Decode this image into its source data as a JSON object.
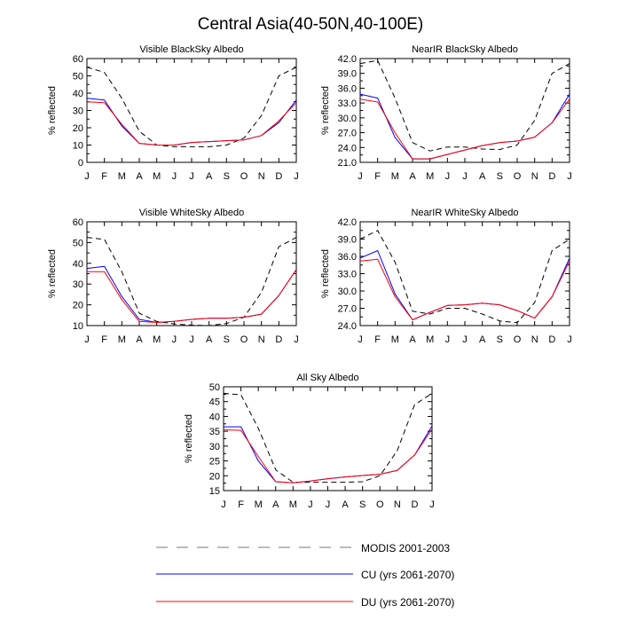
{
  "figure_title": "Central Asia(40-50N,40-100E)",
  "colors": {
    "modis": "#000000",
    "cu": "#0000ff",
    "du": "#ff0000"
  },
  "legend": [
    {
      "key": "modis",
      "label": "MODIS 2001-2003",
      "style": "dashed",
      "color": "#000000"
    },
    {
      "key": "cu",
      "label": "CU (yrs 2061-2070)",
      "style": "solid",
      "color": "#0000ff"
    },
    {
      "key": "du",
      "label": "DU (yrs 2061-2070)",
      "style": "solid",
      "color": "#ff0000"
    }
  ],
  "chart_data": [
    {
      "type": "line",
      "title": "Visible BlackSky Albedo",
      "ylabel": "% reflected",
      "categories": [
        "J",
        "F",
        "M",
        "A",
        "M",
        "J",
        "J",
        "A",
        "S",
        "O",
        "N",
        "D",
        "J"
      ],
      "ylim": [
        0,
        60
      ],
      "yticks": [
        0,
        10,
        20,
        30,
        40,
        50,
        60
      ],
      "ytick_labels": [
        "0",
        "10",
        "20",
        "30",
        "40",
        "50",
        "60"
      ],
      "series": [
        {
          "name": "MODIS 2001-2003",
          "key": "modis",
          "values": [
            55,
            52,
            37,
            18,
            10,
            9,
            9,
            9,
            10,
            14,
            27,
            50,
            55
          ]
        },
        {
          "name": "CU (yrs 2061-2070)",
          "key": "cu",
          "values": [
            37,
            36,
            21,
            11,
            10,
            10,
            11.5,
            12,
            12.5,
            13,
            15.5,
            23,
            36
          ]
        },
        {
          "name": "DU (yrs 2061-2070)",
          "key": "du",
          "values": [
            35,
            34.5,
            22,
            11,
            10,
            10,
            11.5,
            12,
            12.5,
            13,
            15.5,
            24,
            34.5
          ]
        }
      ]
    },
    {
      "type": "line",
      "title": "NearIR BlackSky Albedo",
      "ylabel": "% reflected",
      "categories": [
        "J",
        "F",
        "M",
        "A",
        "M",
        "J",
        "J",
        "A",
        "S",
        "O",
        "N",
        "D",
        "J"
      ],
      "ylim": [
        21,
        42
      ],
      "yticks": [
        21,
        24,
        27,
        30,
        33,
        36,
        39,
        42
      ],
      "ytick_labels": [
        "21.0",
        "24.0",
        "27.0",
        "30.0",
        "33.0",
        "36.0",
        "39.0",
        "42.0"
      ],
      "series": [
        {
          "name": "MODIS 2001-2003",
          "key": "modis",
          "values": [
            41,
            41.6,
            34,
            25,
            23.3,
            24.1,
            24.1,
            23.7,
            23.6,
            24.5,
            29.5,
            39,
            41
          ]
        },
        {
          "name": "CU (yrs 2061-2070)",
          "key": "cu",
          "values": [
            34.8,
            34,
            26,
            21.7,
            21.7,
            22.6,
            23.5,
            24.4,
            25,
            25.3,
            26.1,
            29,
            34.8
          ]
        },
        {
          "name": "DU (yrs 2061-2070)",
          "key": "du",
          "values": [
            33.8,
            33.2,
            27,
            21.7,
            21.7,
            22.6,
            23.5,
            24.4,
            25,
            25.3,
            26.1,
            29,
            33.8
          ]
        }
      ]
    },
    {
      "type": "line",
      "title": "Visible WhiteSky Albedo",
      "ylabel": "% reflected",
      "categories": [
        "J",
        "F",
        "M",
        "A",
        "M",
        "J",
        "J",
        "A",
        "S",
        "O",
        "N",
        "D",
        "J"
      ],
      "ylim": [
        10,
        60
      ],
      "yticks": [
        10,
        20,
        30,
        40,
        50,
        60
      ],
      "ytick_labels": [
        "10",
        "20",
        "30",
        "40",
        "50",
        "60"
      ],
      "series": [
        {
          "name": "MODIS 2001-2003",
          "key": "modis",
          "values": [
            52.5,
            51.5,
            36,
            16,
            12,
            10.8,
            10.2,
            10,
            11,
            14,
            26,
            48,
            52.5
          ]
        },
        {
          "name": "CU (yrs 2061-2070)",
          "key": "cu",
          "values": [
            37.5,
            38.5,
            24,
            13,
            11.5,
            12,
            13,
            13.5,
            13.5,
            14,
            15.5,
            24.5,
            37
          ]
        },
        {
          "name": "DU (yrs 2061-2070)",
          "key": "du",
          "values": [
            36,
            36,
            22.5,
            12,
            11.5,
            12,
            13,
            13.5,
            13.5,
            14,
            15.5,
            24.5,
            37
          ]
        }
      ]
    },
    {
      "type": "line",
      "title": "NearIR WhiteSky Albedo",
      "ylabel": "% reflected",
      "categories": [
        "J",
        "F",
        "M",
        "A",
        "M",
        "J",
        "J",
        "A",
        "S",
        "O",
        "N",
        "D",
        "J"
      ],
      "ylim": [
        24,
        42
      ],
      "yticks": [
        24,
        27,
        30,
        33,
        36,
        39,
        42
      ],
      "ytick_labels": [
        "24.0",
        "27.0",
        "30.0",
        "33.0",
        "36.0",
        "39.0",
        "42.0"
      ],
      "series": [
        {
          "name": "MODIS 2001-2003",
          "key": "modis",
          "values": [
            39,
            40.5,
            35,
            26.5,
            26,
            27,
            27,
            26,
            24.8,
            24.5,
            28,
            37,
            39
          ]
        },
        {
          "name": "CU (yrs 2061-2070)",
          "key": "cu",
          "values": [
            35.7,
            37,
            29.5,
            25,
            26.3,
            27.5,
            27.6,
            27.9,
            27.6,
            26.6,
            25.3,
            29,
            35.7
          ]
        },
        {
          "name": "DU (yrs 2061-2070)",
          "key": "du",
          "values": [
            35.2,
            35.5,
            29,
            25,
            26.3,
            27.5,
            27.6,
            27.9,
            27.6,
            26.6,
            25.3,
            29,
            35.2
          ]
        }
      ]
    },
    {
      "type": "line",
      "title": "All Sky Albedo",
      "ylabel": "% reflected",
      "categories": [
        "J",
        "F",
        "M",
        "A",
        "M",
        "J",
        "J",
        "A",
        "S",
        "O",
        "N",
        "D",
        "J"
      ],
      "ylim": [
        15,
        50
      ],
      "yticks": [
        15,
        20,
        25,
        30,
        35,
        40,
        45,
        50
      ],
      "ytick_labels": [
        "15",
        "20",
        "25",
        "30",
        "35",
        "40",
        "45",
        "50"
      ],
      "series": [
        {
          "name": "MODIS 2001-2003",
          "key": "modis",
          "values": [
            47.8,
            47.3,
            36,
            22,
            17.8,
            17.8,
            17.8,
            17.8,
            18,
            20,
            28.5,
            44,
            47.8
          ]
        },
        {
          "name": "CU (yrs 2061-2070)",
          "key": "cu",
          "values": [
            36.5,
            36.5,
            25,
            18,
            17.6,
            18.2,
            19,
            19.6,
            20.1,
            20.5,
            21.8,
            27,
            36.8
          ]
        },
        {
          "name": "DU (yrs 2061-2070)",
          "key": "du",
          "values": [
            35.5,
            35.3,
            26.5,
            18,
            17.6,
            18.2,
            19,
            19.6,
            20.1,
            20.5,
            21.8,
            27,
            35.8
          ]
        }
      ]
    }
  ]
}
